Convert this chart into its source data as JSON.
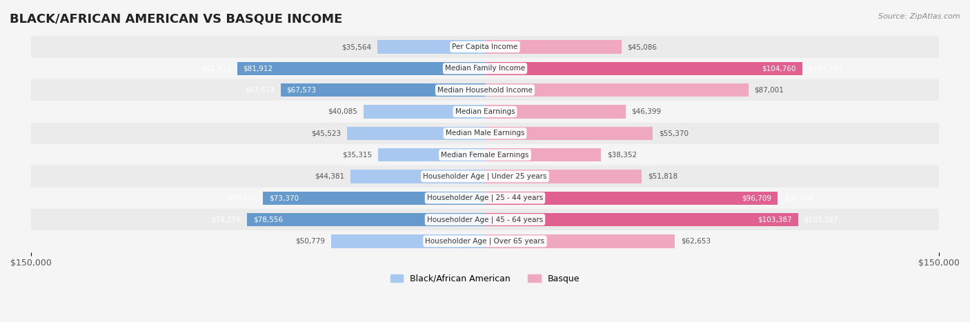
{
  "title": "BLACK/AFRICAN AMERICAN VS BASQUE INCOME",
  "source": "Source: ZipAtlas.com",
  "categories": [
    "Per Capita Income",
    "Median Family Income",
    "Median Household Income",
    "Median Earnings",
    "Median Male Earnings",
    "Median Female Earnings",
    "Householder Age | Under 25 years",
    "Householder Age | 25 - 44 years",
    "Householder Age | 45 - 64 years",
    "Householder Age | Over 65 years"
  ],
  "black_values": [
    35564,
    81912,
    67573,
    40085,
    45523,
    35315,
    44381,
    73370,
    78556,
    50779
  ],
  "basque_values": [
    45086,
    104760,
    87001,
    46399,
    55370,
    38352,
    51818,
    96709,
    103387,
    62653
  ],
  "black_labels": [
    "$35,564",
    "$81,912",
    "$67,573",
    "$40,085",
    "$45,523",
    "$35,315",
    "$44,381",
    "$73,370",
    "$78,556",
    "$50,779"
  ],
  "basque_labels": [
    "$45,086",
    "$104,760",
    "$87,001",
    "$46,399",
    "$55,370",
    "$38,352",
    "$51,818",
    "$96,709",
    "$103,387",
    "$62,653"
  ],
  "black_color_light": "#a8c8f0",
  "black_color_dark": "#6699cc",
  "basque_color_light": "#f0a8c0",
  "basque_color_dark": "#e06090",
  "max_value": 150000,
  "bg_color": "#f5f5f5",
  "row_bg_even": "#ebebeb",
  "row_bg_odd": "#f5f5f5",
  "highlight_black": [
    1,
    2,
    7,
    8
  ],
  "highlight_basque": [
    1,
    7,
    8
  ]
}
